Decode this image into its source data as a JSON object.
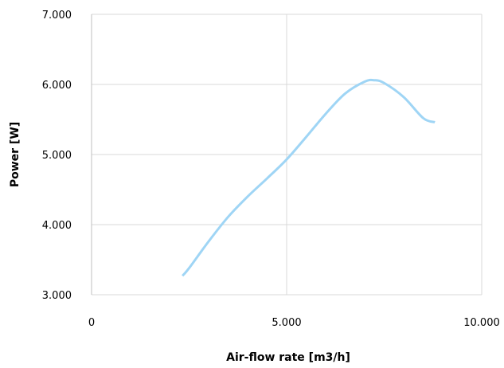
{
  "chart_data": {
    "type": "line",
    "title": "",
    "xlabel": "Air-flow rate [m3/h]",
    "ylabel": "Power [W]",
    "xlim": [
      0,
      10
    ],
    "ylim": [
      3,
      7
    ],
    "x_ticks": [
      {
        "value": 0,
        "label": "0"
      },
      {
        "value": 5,
        "label": "5.000"
      },
      {
        "value": 10,
        "label": "10.000"
      }
    ],
    "y_ticks": [
      {
        "value": 3,
        "label": "3.000"
      },
      {
        "value": 4,
        "label": "4.000"
      },
      {
        "value": 5,
        "label": "5.000"
      },
      {
        "value": 6,
        "label": "6.000"
      },
      {
        "value": 7,
        "label": "7.000"
      }
    ],
    "grid": true,
    "legend": "none",
    "series": [
      {
        "color": "#9fd5f5",
        "smooth": true,
        "points": [
          [
            2.33,
            3.27
          ],
          [
            2.5,
            3.38
          ],
          [
            3.0,
            3.76
          ],
          [
            3.5,
            4.11
          ],
          [
            4.0,
            4.4
          ],
          [
            4.5,
            4.66
          ],
          [
            5.0,
            4.93
          ],
          [
            5.5,
            5.25
          ],
          [
            6.0,
            5.58
          ],
          [
            6.5,
            5.87
          ],
          [
            7.0,
            6.04
          ],
          [
            7.25,
            6.06
          ],
          [
            7.5,
            6.02
          ],
          [
            8.0,
            5.82
          ],
          [
            8.5,
            5.52
          ],
          [
            8.8,
            5.46
          ]
        ]
      }
    ]
  },
  "colors": {
    "grid": "#d9d9d9",
    "axis": "#bfbfbf",
    "line": "#9fd5f5"
  }
}
